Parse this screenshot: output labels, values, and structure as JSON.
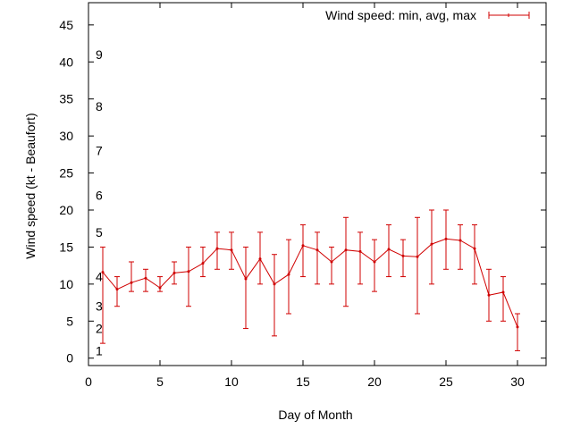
{
  "chart_data": {
    "type": "line",
    "title": "",
    "xlabel": "Day of Month",
    "ylabel": "Wind speed (kt - Beaufort)",
    "xlim": [
      0,
      32
    ],
    "ylim": [
      -1,
      48
    ],
    "xticks": [
      0,
      5,
      10,
      15,
      20,
      25,
      30
    ],
    "yticks": [
      0,
      5,
      10,
      15,
      20,
      25,
      30,
      35,
      40,
      45
    ],
    "grid": false,
    "legend_position": "top-right",
    "beaufort_labels": [
      {
        "label": "1",
        "value": 1
      },
      {
        "label": "2",
        "value": 4
      },
      {
        "label": "3",
        "value": 7
      },
      {
        "label": "4",
        "value": 11
      },
      {
        "label": "5",
        "value": 17
      },
      {
        "label": "6",
        "value": 22
      },
      {
        "label": "7",
        "value": 28
      },
      {
        "label": "8",
        "value": 34
      },
      {
        "label": "9",
        "value": 41
      }
    ],
    "series": [
      {
        "name": "Wind speed: min, avg, max",
        "color": "#d00000",
        "x": [
          1,
          2,
          3,
          4,
          5,
          6,
          7,
          8,
          9,
          10,
          11,
          12,
          13,
          14,
          15,
          16,
          17,
          18,
          19,
          20,
          21,
          22,
          23,
          24,
          25,
          26,
          27,
          28,
          29,
          30
        ],
        "avg": [
          11.6,
          9.3,
          10.2,
          10.8,
          9.5,
          11.5,
          11.7,
          12.8,
          14.8,
          14.6,
          10.7,
          13.4,
          10.0,
          11.3,
          15.2,
          14.6,
          13.0,
          14.6,
          14.4,
          13.0,
          14.7,
          13.8,
          13.7,
          15.4,
          16.1,
          15.9,
          14.8,
          8.5,
          8.9,
          4.2
        ],
        "min": [
          2,
          7,
          9,
          9,
          9,
          10,
          7,
          11,
          12,
          12,
          4,
          10,
          3,
          6,
          11,
          10,
          10,
          7,
          10,
          9,
          11,
          11,
          6,
          10,
          12,
          12,
          10,
          5,
          5,
          1
        ],
        "max": [
          15,
          11,
          13,
          12,
          11,
          13,
          15,
          15,
          17,
          17,
          15,
          17,
          14,
          16,
          18,
          17,
          15,
          19,
          17,
          16,
          18,
          16,
          19,
          20,
          20,
          18,
          18,
          12,
          11,
          6
        ]
      }
    ]
  }
}
